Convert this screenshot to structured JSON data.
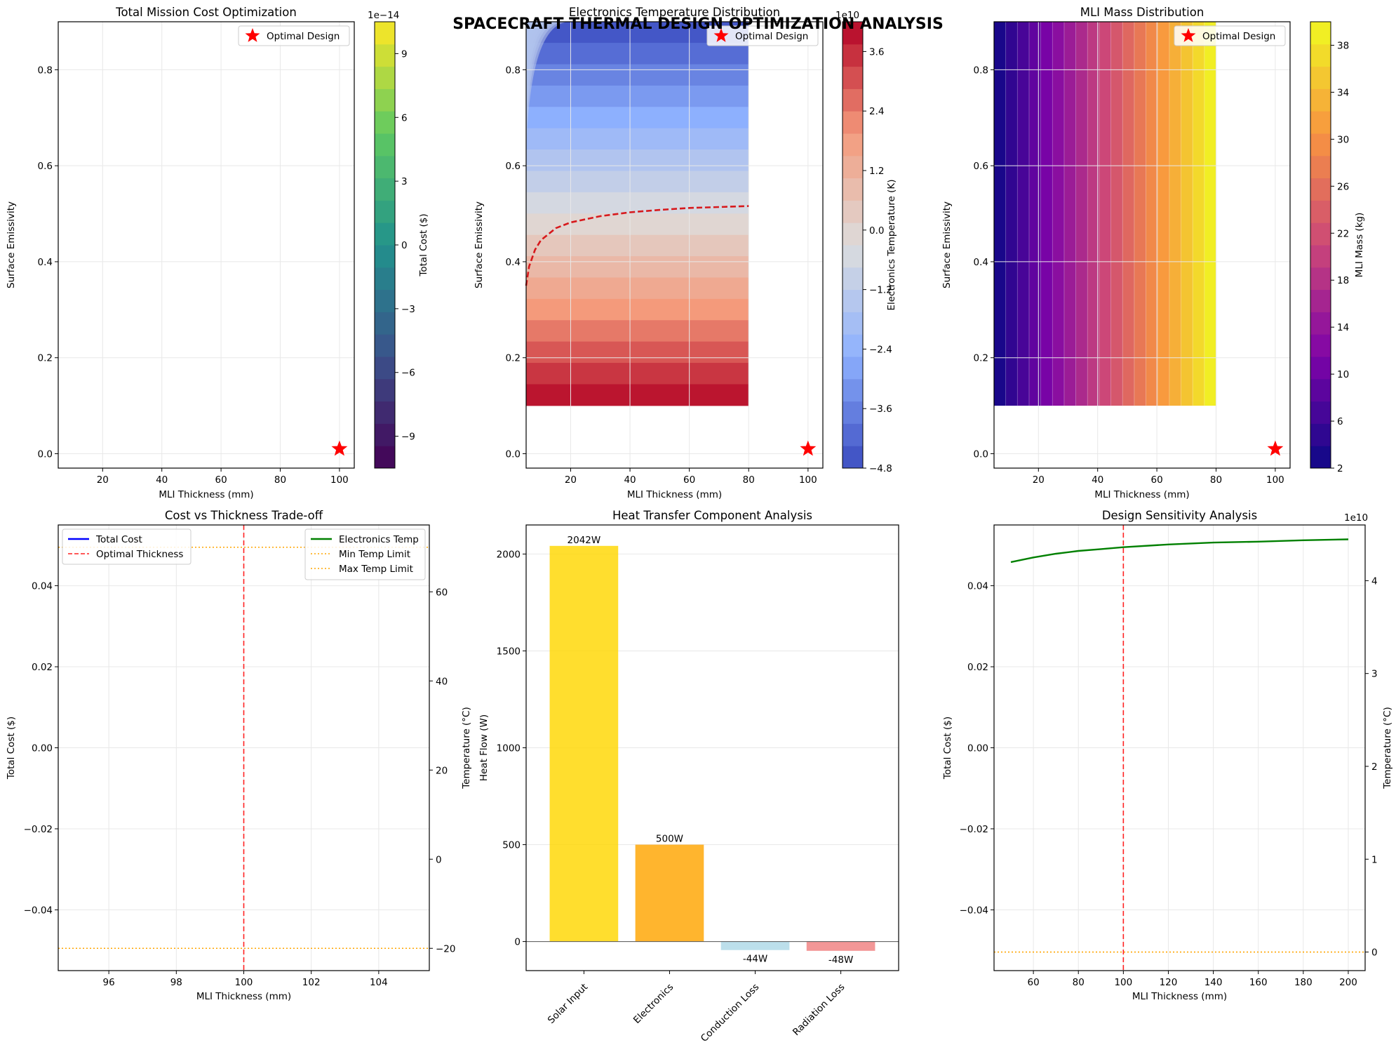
{
  "suptitle": "SPACECRAFT THERMAL DESIGN OPTIMIZATION ANALYSIS",
  "colors": {
    "star": "#ff0000",
    "optimal_line": "#ff2222",
    "temp_line": "#008000",
    "limit_line": "#ffa500",
    "bar_colors": [
      "#ffd700",
      "#ffa500",
      "#add8e6",
      "#f08080"
    ]
  },
  "chart_data": [
    {
      "id": "p1",
      "type": "heatmap",
      "title": "Total Mission Cost Optimization",
      "xlabel": "MLI Thickness (mm)",
      "ylabel": "Surface Emissivity",
      "xlim": [
        5,
        105
      ],
      "ylim": [
        -0.03,
        0.9
      ],
      "xticks": [
        "20",
        "40",
        "60",
        "80",
        "100"
      ],
      "yticks": [
        "0.0",
        "0.2",
        "0.4",
        "0.6",
        "0.8"
      ],
      "legend": {
        "label": "Optimal Design",
        "position": "upper right"
      },
      "optimal_point": {
        "x": 100,
        "y": 0.01
      },
      "colorbar": {
        "label": "Total Cost ($)",
        "offset_text": "1e−14",
        "cmap": "viridis",
        "range": [
          -10.5,
          10.5
        ],
        "ticks": [
          "−9",
          "−6",
          "−3",
          "0",
          "3",
          "6",
          "9"
        ]
      },
      "grid": true
    },
    {
      "id": "p2",
      "type": "heatmap",
      "title": "Electronics Temperature Distribution",
      "xlabel": "MLI Thickness (mm)",
      "ylabel": "Surface Emissivity",
      "xlim": [
        5,
        105
      ],
      "ylim": [
        -0.03,
        0.9
      ],
      "xticks": [
        "20",
        "40",
        "60",
        "80",
        "100"
      ],
      "yticks": [
        "0.0",
        "0.2",
        "0.4",
        "0.6",
        "0.8"
      ],
      "data_extent": {
        "x": [
          5,
          80
        ],
        "y": [
          0.1,
          0.9
        ]
      },
      "legend": {
        "label": "Optimal Design",
        "position": "upper right"
      },
      "optimal_point": {
        "x": 100,
        "y": 0.01
      },
      "contour_line": {
        "x": [
          5,
          6,
          8,
          10,
          15,
          20,
          30,
          40,
          50,
          60,
          70,
          80
        ],
        "y": [
          0.35,
          0.39,
          0.425,
          0.445,
          0.47,
          0.482,
          0.495,
          0.503,
          0.508,
          0.512,
          0.514,
          0.516
        ]
      },
      "colorbar": {
        "label": "Electronics Temperature (K)",
        "offset_text": "1e10",
        "cmap": "coolwarm",
        "range": [
          -4.8,
          4.2
        ],
        "ticks": [
          "−4.8",
          "−3.6",
          "−2.4",
          "−1.2",
          "0.0",
          "1.2",
          "2.4",
          "3.6"
        ]
      },
      "grid": true
    },
    {
      "id": "p3",
      "type": "heatmap",
      "title": "MLI Mass Distribution",
      "xlabel": "MLI Thickness (mm)",
      "ylabel": "Surface Emissivity",
      "xlim": [
        5,
        105
      ],
      "ylim": [
        -0.03,
        0.9
      ],
      "xticks": [
        "20",
        "40",
        "60",
        "80",
        "100"
      ],
      "yticks": [
        "0.0",
        "0.2",
        "0.4",
        "0.6",
        "0.8"
      ],
      "data_extent": {
        "x": [
          5,
          80
        ],
        "y": [
          0.1,
          0.9
        ]
      },
      "legend": {
        "label": "Optimal Design",
        "position": "upper right"
      },
      "optimal_point": {
        "x": 100,
        "y": 0.01
      },
      "colorbar": {
        "label": "MLI Mass (kg)",
        "cmap": "plasma",
        "range": [
          2,
          40
        ],
        "ticks": [
          "2",
          "6",
          "10",
          "14",
          "18",
          "22",
          "26",
          "30",
          "34",
          "38"
        ]
      },
      "grid": true
    },
    {
      "id": "p4",
      "type": "line",
      "title": "Cost vs Thickness Trade-off",
      "xlabel": "MLI Thickness (mm)",
      "ylabel": "Total Cost ($)",
      "ylabel_right": "Temperature (°C)",
      "xlim": [
        94.5,
        105.5
      ],
      "ylim": [
        -0.055,
        0.055
      ],
      "ylim_right": [
        -25,
        75
      ],
      "xticks": [
        "96",
        "98",
        "100",
        "102",
        "104"
      ],
      "yticks": [
        "−0.04",
        "−0.02",
        "0.00",
        "0.02",
        "0.04"
      ],
      "yticks_right": [
        "−20",
        "0",
        "20",
        "40",
        "60"
      ],
      "optimal_x": 100,
      "temp_limits": {
        "min": -20,
        "max": 70
      },
      "legend_left": [
        "Total Cost",
        "Optimal Thickness"
      ],
      "legend_right": [
        "Electronics Temp",
        "Min Temp Limit",
        "Max Temp Limit"
      ],
      "grid": true
    },
    {
      "id": "p5",
      "type": "bar",
      "title": "Heat Transfer Component Analysis",
      "ylabel": "Heat Flow (W)",
      "categories": [
        "Solar Input",
        "Electronics",
        "Conduction Loss",
        "Radiation Loss"
      ],
      "values": [
        2042,
        500,
        -44,
        -48
      ],
      "value_labels": [
        "2042W",
        "500W",
        "-44W",
        "-48W"
      ],
      "ylim": [
        -150,
        2150
      ],
      "yticks": [
        "0",
        "500",
        "1000",
        "1500",
        "2000"
      ],
      "grid": true
    },
    {
      "id": "p6",
      "type": "line",
      "title": "Design Sensitivity Analysis",
      "xlabel": "MLI Thickness (mm)",
      "ylabel": "Total Cost ($)",
      "ylabel_right": "Temperature (°C)",
      "right_offset_text": "1e10",
      "xlim": [
        42.5,
        207.5
      ],
      "ylim": [
        -0.055,
        0.055
      ],
      "ylim_right": [
        -0.2,
        4.6
      ],
      "xticks": [
        "60",
        "80",
        "100",
        "120",
        "140",
        "160",
        "180",
        "200"
      ],
      "yticks": [
        "−0.04",
        "−0.02",
        "0.00",
        "0.02",
        "0.04"
      ],
      "yticks_right": [
        "0",
        "1",
        "2",
        "3",
        "4"
      ],
      "optimal_x": 100,
      "temp_min_limit": 0,
      "series": [
        {
          "x": [
            50,
            60,
            70,
            80,
            90,
            100,
            120,
            140,
            160,
            180,
            200
          ],
          "y": [
            4.2,
            4.25,
            4.29,
            4.32,
            4.34,
            4.36,
            4.39,
            4.41,
            4.42,
            4.435,
            4.445
          ]
        }
      ],
      "grid": true
    }
  ]
}
